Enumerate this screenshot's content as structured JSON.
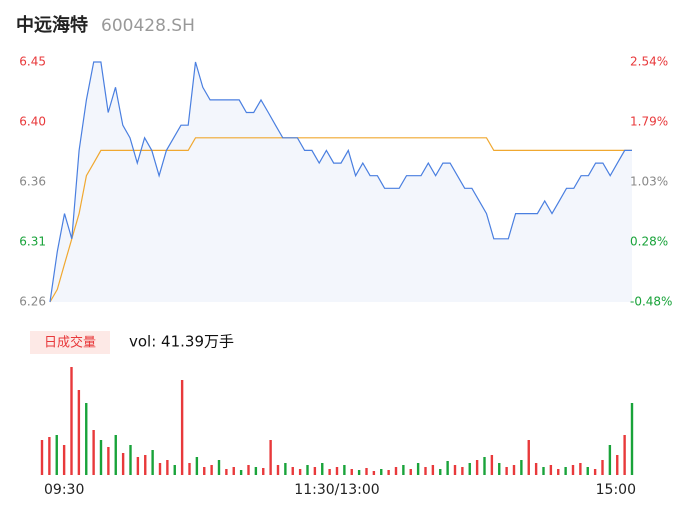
{
  "chart_data": [
    {
      "type": "line",
      "title": "中远海特",
      "subtitle": "600428.SH",
      "x": [
        0,
        3,
        6,
        9,
        12,
        15,
        18,
        21,
        24,
        27,
        30,
        33,
        36,
        39,
        42,
        45,
        48,
        51,
        54,
        57,
        60,
        63,
        66,
        69,
        72,
        75,
        78,
        81,
        84,
        87,
        90,
        93,
        96,
        99,
        102,
        105,
        108,
        111,
        114,
        117,
        120,
        123,
        126,
        129,
        132,
        135,
        138,
        141,
        144,
        147,
        150,
        153,
        156,
        159,
        162,
        165,
        168,
        171,
        174,
        177,
        180,
        183,
        186,
        189,
        192,
        195,
        198,
        201,
        204,
        207,
        210,
        213,
        216,
        219,
        222,
        225,
        228,
        231,
        234,
        237,
        240
      ],
      "series": [
        {
          "color": "#4a7fe0",
          "values": [
            6.26,
            6.3,
            6.33,
            6.31,
            6.38,
            6.42,
            6.45,
            6.45,
            6.41,
            6.43,
            6.4,
            6.39,
            6.37,
            6.39,
            6.38,
            6.36,
            6.38,
            6.39,
            6.4,
            6.4,
            6.45,
            6.43,
            6.42,
            6.42,
            6.42,
            6.42,
            6.42,
            6.41,
            6.41,
            6.42,
            6.41,
            6.4,
            6.39,
            6.39,
            6.39,
            6.38,
            6.38,
            6.37,
            6.38,
            6.37,
            6.37,
            6.38,
            6.36,
            6.37,
            6.36,
            6.36,
            6.35,
            6.35,
            6.35,
            6.36,
            6.36,
            6.36,
            6.37,
            6.36,
            6.37,
            6.37,
            6.36,
            6.35,
            6.35,
            6.34,
            6.33,
            6.31,
            6.31,
            6.31,
            6.33,
            6.33,
            6.33,
            6.33,
            6.34,
            6.33,
            6.34,
            6.35,
            6.35,
            6.36,
            6.36,
            6.37,
            6.37,
            6.36,
            6.37,
            6.38,
            6.38
          ]
        },
        {
          "color": "#f0a830",
          "values": [
            6.26,
            6.27,
            6.29,
            6.31,
            6.33,
            6.36,
            6.37,
            6.38,
            6.38,
            6.38,
            6.38,
            6.38,
            6.38,
            6.38,
            6.38,
            6.38,
            6.38,
            6.38,
            6.38,
            6.38,
            6.39,
            6.39,
            6.39,
            6.39,
            6.39,
            6.39,
            6.39,
            6.39,
            6.39,
            6.39,
            6.39,
            6.39,
            6.39,
            6.39,
            6.39,
            6.39,
            6.39,
            6.39,
            6.39,
            6.39,
            6.39,
            6.39,
            6.39,
            6.39,
            6.39,
            6.39,
            6.39,
            6.39,
            6.39,
            6.39,
            6.39,
            6.39,
            6.39,
            6.39,
            6.39,
            6.39,
            6.39,
            6.39,
            6.39,
            6.39,
            6.39,
            6.38,
            6.38,
            6.38,
            6.38,
            6.38,
            6.38,
            6.38,
            6.38,
            6.38,
            6.38,
            6.38,
            6.38,
            6.38,
            6.38,
            6.38,
            6.38,
            6.38,
            6.38,
            6.38,
            6.38
          ]
        }
      ],
      "area_color": "#f3f6fc",
      "xlim": [
        0,
        240
      ],
      "ylim": [
        6.26,
        6.45
      ],
      "yticks": [
        6.45,
        {
          "value": 6.4025,
          "label": "6.40"
        },
        {
          "value": 6.355,
          "label": "6.36"
        },
        {
          "value": 6.3075,
          "label": "6.31"
        },
        6.26
      ],
      "ytick_colors": [
        "#e8393b",
        "#e8393b",
        "#888888",
        "#19a33a",
        "#888888"
      ],
      "y2lim": [
        -0.48,
        2.54
      ],
      "y2ticks": [
        {
          "value": 2.54,
          "label": "2.54%"
        },
        {
          "value": 1.785,
          "label": "1.79%"
        },
        {
          "value": 1.03,
          "label": "1.03%"
        },
        {
          "value": 0.275,
          "label": "0.28%"
        },
        {
          "value": -0.48,
          "label": "-0.48%"
        }
      ],
      "y2tick_colors": [
        "#e8393b",
        "#e8393b",
        "#888888",
        "#19a33a",
        "#19a33a"
      ]
    },
    {
      "type": "bar",
      "title": "日成交量",
      "annotation": "vol: 41.39万手",
      "x": [
        0,
        3,
        6,
        9,
        12,
        15,
        18,
        21,
        24,
        27,
        30,
        33,
        36,
        39,
        42,
        45,
        48,
        51,
        54,
        57,
        60,
        63,
        66,
        69,
        72,
        75,
        78,
        81,
        84,
        87,
        90,
        93,
        96,
        99,
        102,
        105,
        108,
        111,
        114,
        117,
        120,
        123,
        126,
        129,
        132,
        135,
        138,
        141,
        144,
        147,
        150,
        153,
        156,
        159,
        162,
        165,
        168,
        171,
        174,
        177,
        180,
        183,
        186,
        189,
        192,
        195,
        198,
        201,
        204,
        207,
        210,
        213,
        216,
        219,
        222,
        225,
        228,
        231,
        234,
        237,
        240
      ],
      "values": [
        35,
        38,
        40,
        30,
        108,
        85,
        72,
        45,
        35,
        28,
        40,
        22,
        30,
        18,
        20,
        25,
        12,
        15,
        10,
        95,
        12,
        18,
        8,
        10,
        15,
        6,
        8,
        5,
        10,
        8,
        7,
        35,
        10,
        12,
        8,
        6,
        10,
        8,
        12,
        6,
        8,
        10,
        6,
        5,
        7,
        4,
        6,
        5,
        8,
        10,
        6,
        12,
        8,
        10,
        6,
        14,
        10,
        8,
        12,
        15,
        18,
        20,
        12,
        8,
        10,
        15,
        35,
        12,
        8,
        10,
        6,
        8,
        10,
        12,
        8,
        6,
        15,
        30,
        20,
        40,
        72
      ],
      "directions": [
        "up",
        "up",
        "down",
        "up",
        "up",
        "up",
        "down",
        "up",
        "down",
        "up",
        "down",
        "up",
        "down",
        "up",
        "up",
        "down",
        "up",
        "up",
        "down",
        "up",
        "up",
        "down",
        "up",
        "up",
        "down",
        "up",
        "up",
        "down",
        "up",
        "down",
        "up",
        "up",
        "up",
        "down",
        "up",
        "up",
        "down",
        "up",
        "down",
        "up",
        "up",
        "down",
        "up",
        "down",
        "up",
        "up",
        "down",
        "up",
        "up",
        "down",
        "up",
        "down",
        "up",
        "up",
        "down",
        "down",
        "up",
        "up",
        "down",
        "up",
        "down",
        "up",
        "down",
        "up",
        "up",
        "down",
        "up",
        "up",
        "down",
        "up",
        "up",
        "down",
        "up",
        "up",
        "down",
        "up",
        "up",
        "down",
        "up",
        "up",
        "down"
      ],
      "up_color": "#e8393b",
      "down_color": "#19a33a",
      "xlim": [
        0,
        240
      ],
      "ylim": [
        0,
        110
      ],
      "xticks": [
        {
          "value": 0,
          "label": "09:30"
        },
        {
          "value": 120,
          "label": "11:30/13:00"
        },
        {
          "value": 240,
          "label": "15:00"
        }
      ]
    }
  ]
}
